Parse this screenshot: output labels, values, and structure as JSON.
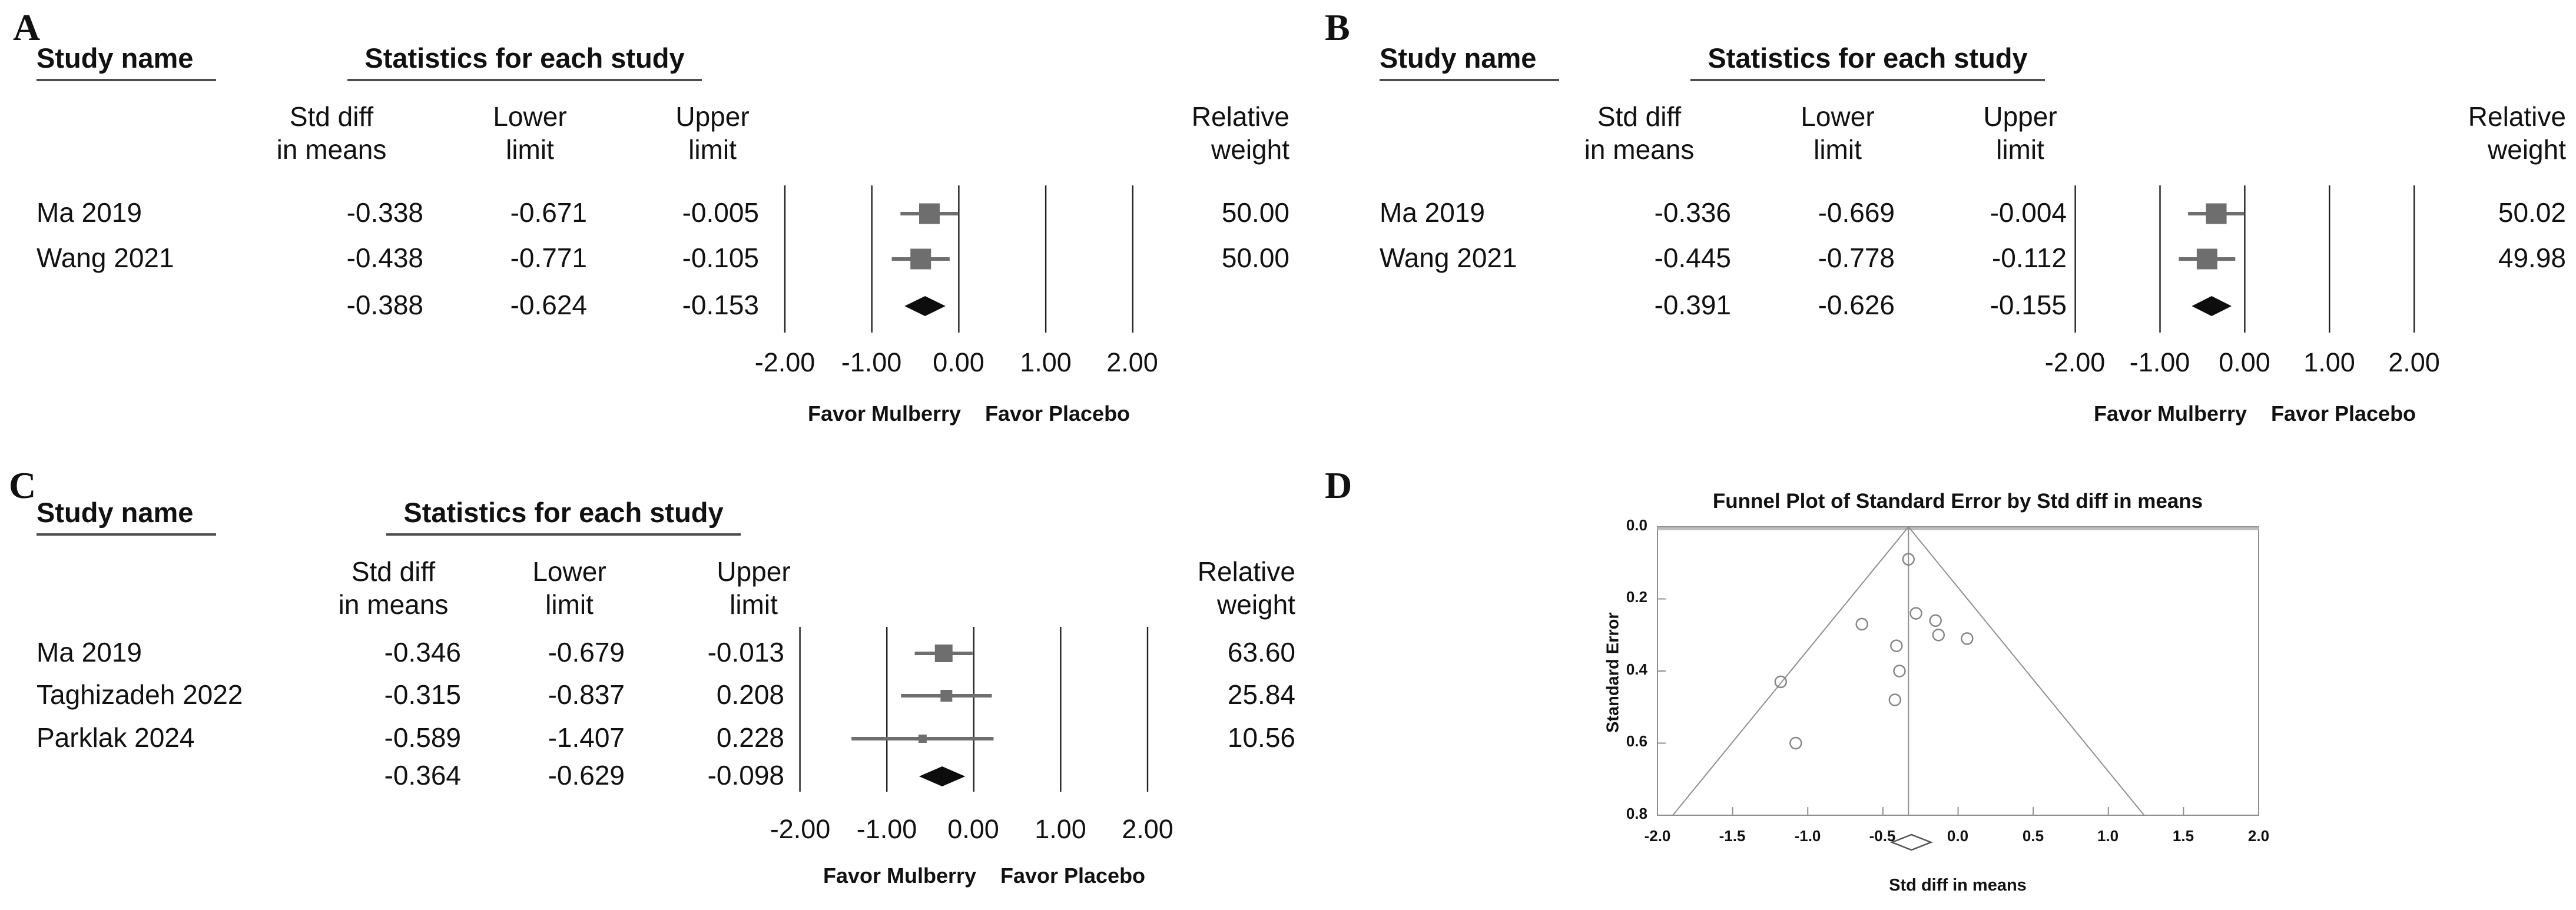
{
  "figure": {
    "letters": [
      "A",
      "B",
      "C",
      "D"
    ],
    "background": "#ffffff"
  },
  "colors": {
    "marker_gray": "#6e6e6e",
    "diamond_black": "#0d0d0d",
    "grid_line": "#1f1f1f",
    "funnel_line": "#8f8f8f",
    "funnel_point_stroke": "#858585",
    "text": "#111111"
  },
  "chart_data": [
    {
      "type": "forest",
      "panel": "A",
      "headers": {
        "study": "Study name",
        "stats": "Statistics for each study",
        "col1a": "Std diff",
        "col1b": "in means",
        "col2a": "Lower",
        "col2b": "limit",
        "col3a": "Upper",
        "col3b": "limit",
        "weight1": "Relative",
        "weight2": "weight"
      },
      "rows": [
        {
          "study": "Ma 2019",
          "mean": "-0.338",
          "lower": "-0.671",
          "upper": "-0.005",
          "weight": "50.00"
        },
        {
          "study": "Wang 2021",
          "mean": "-0.438",
          "lower": "-0.771",
          "upper": "-0.105",
          "weight": "50.00"
        }
      ],
      "overall": {
        "mean": "-0.388",
        "lower": "-0.624",
        "upper": "-0.153"
      },
      "axis_ticks": [
        "-2.00",
        "-1.00",
        "0.00",
        "1.00",
        "2.00"
      ],
      "favor_left": "Favor Mulberry",
      "favor_right": "Favor Placebo",
      "xlim": [
        -2,
        2
      ]
    },
    {
      "type": "forest",
      "panel": "B",
      "headers": {
        "study": "Study name",
        "stats": "Statistics for each study",
        "col1a": "Std diff",
        "col1b": "in means",
        "col2a": "Lower",
        "col2b": "limit",
        "col3a": "Upper",
        "col3b": "limit",
        "weight1": "Relative",
        "weight2": "weight"
      },
      "rows": [
        {
          "study": "Ma 2019",
          "mean": "-0.336",
          "lower": "-0.669",
          "upper": "-0.004",
          "weight": "50.02"
        },
        {
          "study": "Wang 2021",
          "mean": "-0.445",
          "lower": "-0.778",
          "upper": "-0.112",
          "weight": "49.98"
        }
      ],
      "overall": {
        "mean": "-0.391",
        "lower": "-0.626",
        "upper": "-0.155"
      },
      "axis_ticks": [
        "-2.00",
        "-1.00",
        "0.00",
        "1.00",
        "2.00"
      ],
      "favor_left": "Favor Mulberry",
      "favor_right": "Favor Placebo",
      "xlim": [
        -2,
        2
      ]
    },
    {
      "type": "forest",
      "panel": "C",
      "headers": {
        "study": "Study name",
        "stats": "Statistics for each study",
        "col1a": "Std diff",
        "col1b": "in means",
        "col2a": "Lower",
        "col2b": "limit",
        "col3a": "Upper",
        "col3b": "limit",
        "weight1": "Relative",
        "weight2": "weight"
      },
      "rows": [
        {
          "study": "Ma 2019",
          "mean": "-0.346",
          "lower": "-0.679",
          "upper": "-0.013",
          "weight": "63.60"
        },
        {
          "study": "Taghizadeh 2022",
          "mean": "-0.315",
          "lower": "-0.837",
          "upper": "0.208",
          "weight": "25.84"
        },
        {
          "study": "Parklak 2024",
          "mean": "-0.589",
          "lower": "-1.407",
          "upper": "0.228",
          "weight": "10.56"
        }
      ],
      "overall": {
        "mean": "-0.364",
        "lower": "-0.629",
        "upper": "-0.098"
      },
      "axis_ticks": [
        "-2.00",
        "-1.00",
        "0.00",
        "1.00",
        "2.00"
      ],
      "favor_left": "Favor Mulberry",
      "favor_right": "Favor Placebo",
      "xlim": [
        -2,
        2
      ]
    },
    {
      "type": "scatter",
      "panel": "D",
      "title": "Funnel Plot of Standard Error by Std diff in means",
      "xlabel": "Std diff in means",
      "ylabel": "Standard Error",
      "x_ticks": [
        "-2.0",
        "-1.5",
        "-1.0",
        "-0.5",
        "0.0",
        "0.5",
        "1.0",
        "1.5",
        "2.0"
      ],
      "y_ticks": [
        "0.0",
        "0.2",
        "0.4",
        "0.6",
        "0.8"
      ],
      "xlim": [
        -2,
        2
      ],
      "ylim": [
        0,
        0.8
      ],
      "pooled_estimate": -0.33,
      "pseudo_ci_slope": 1.96,
      "points": [
        [
          -0.33,
          0.09
        ],
        [
          -0.28,
          0.24
        ],
        [
          -0.15,
          0.26
        ],
        [
          -0.13,
          0.3
        ],
        [
          -0.64,
          0.27
        ],
        [
          0.06,
          0.31
        ],
        [
          -0.41,
          0.33
        ],
        [
          -0.39,
          0.4
        ],
        [
          -1.18,
          0.43
        ],
        [
          -0.42,
          0.48
        ],
        [
          -1.08,
          0.6
        ]
      ],
      "diamond": {
        "center": -0.31,
        "lower": -0.44,
        "upper": -0.18
      }
    }
  ]
}
